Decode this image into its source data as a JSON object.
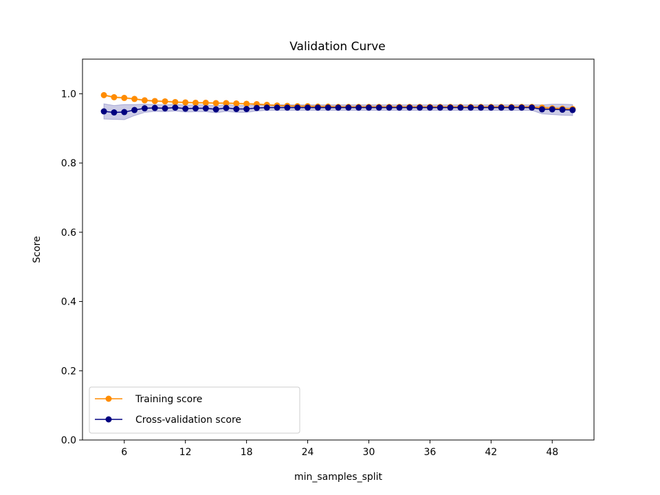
{
  "chart_data": {
    "type": "line",
    "title": "Validation Curve",
    "xlabel": "min_samples_split",
    "ylabel": "Score",
    "xlim": [
      1.9,
      52.1
    ],
    "ylim": [
      0.0,
      1.1
    ],
    "xticks": [
      6,
      12,
      18,
      24,
      30,
      36,
      42,
      48
    ],
    "yticks": [
      0.0,
      0.2,
      0.4,
      0.6,
      0.8,
      1.0
    ],
    "ytick_labels": [
      "0.0",
      "0.2",
      "0.4",
      "0.6",
      "0.8",
      "1.0"
    ],
    "grid": false,
    "legend_position": "lower-left",
    "x": [
      4,
      5,
      6,
      7,
      8,
      9,
      10,
      11,
      12,
      13,
      14,
      15,
      16,
      17,
      18,
      19,
      20,
      21,
      22,
      23,
      24,
      25,
      26,
      27,
      28,
      29,
      30,
      31,
      32,
      33,
      34,
      35,
      36,
      37,
      38,
      39,
      40,
      41,
      42,
      43,
      44,
      45,
      46,
      47,
      48,
      49,
      50
    ],
    "series": [
      {
        "name": "Training score",
        "color": "#ff8c00",
        "band_color": "#ff8c00",
        "values": [
          0.996,
          0.99,
          0.988,
          0.985,
          0.981,
          0.979,
          0.978,
          0.976,
          0.975,
          0.974,
          0.974,
          0.973,
          0.973,
          0.972,
          0.971,
          0.97,
          0.968,
          0.966,
          0.965,
          0.964,
          0.964,
          0.963,
          0.963,
          0.962,
          0.962,
          0.962,
          0.962,
          0.962,
          0.962,
          0.962,
          0.962,
          0.962,
          0.962,
          0.962,
          0.962,
          0.962,
          0.962,
          0.962,
          0.962,
          0.962,
          0.962,
          0.962,
          0.962,
          0.96,
          0.958,
          0.957,
          0.956
        ],
        "std": [
          0.002,
          0.002,
          0.002,
          0.002,
          0.002,
          0.002,
          0.002,
          0.002,
          0.002,
          0.002,
          0.002,
          0.002,
          0.002,
          0.002,
          0.002,
          0.002,
          0.002,
          0.002,
          0.002,
          0.002,
          0.002,
          0.002,
          0.002,
          0.002,
          0.002,
          0.002,
          0.002,
          0.002,
          0.002,
          0.002,
          0.002,
          0.002,
          0.002,
          0.002,
          0.002,
          0.002,
          0.002,
          0.002,
          0.002,
          0.002,
          0.002,
          0.002,
          0.002,
          0.003,
          0.003,
          0.003,
          0.003
        ]
      },
      {
        "name": "Cross-validation score",
        "color": "#000080",
        "band_color": "#000080",
        "values": [
          0.949,
          0.946,
          0.947,
          0.953,
          0.958,
          0.959,
          0.958,
          0.96,
          0.957,
          0.958,
          0.958,
          0.955,
          0.959,
          0.956,
          0.956,
          0.959,
          0.96,
          0.96,
          0.96,
          0.96,
          0.96,
          0.96,
          0.96,
          0.96,
          0.96,
          0.96,
          0.96,
          0.96,
          0.96,
          0.96,
          0.96,
          0.96,
          0.96,
          0.96,
          0.96,
          0.96,
          0.96,
          0.96,
          0.96,
          0.96,
          0.96,
          0.96,
          0.96,
          0.955,
          0.955,
          0.954,
          0.953
        ],
        "std": [
          0.022,
          0.02,
          0.022,
          0.016,
          0.012,
          0.01,
          0.01,
          0.01,
          0.01,
          0.01,
          0.01,
          0.01,
          0.01,
          0.01,
          0.01,
          0.009,
          0.008,
          0.008,
          0.008,
          0.008,
          0.008,
          0.008,
          0.008,
          0.008,
          0.008,
          0.008,
          0.008,
          0.008,
          0.008,
          0.008,
          0.008,
          0.008,
          0.008,
          0.008,
          0.008,
          0.008,
          0.008,
          0.008,
          0.008,
          0.008,
          0.008,
          0.008,
          0.008,
          0.013,
          0.015,
          0.016,
          0.016
        ]
      }
    ]
  }
}
